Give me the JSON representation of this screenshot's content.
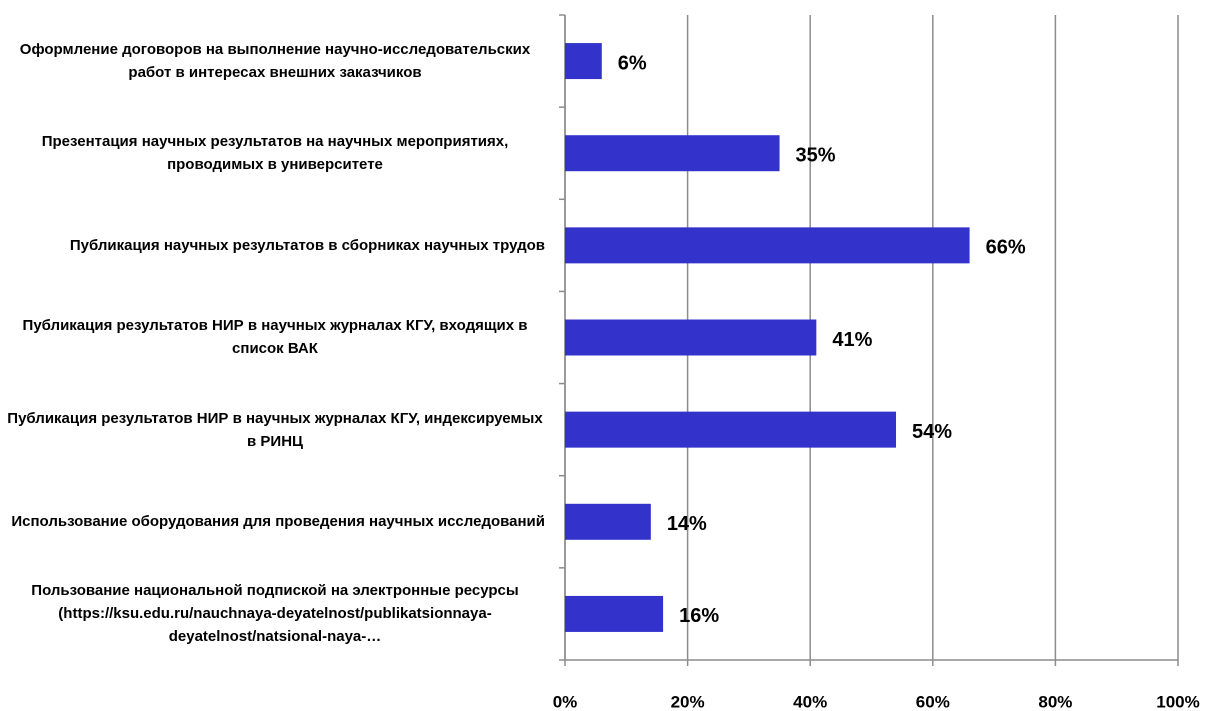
{
  "chart_data": {
    "type": "barh",
    "categories": [
      "Оформление договоров на выполнение научно-исследовательских работ в интересах внешних заказчиков",
      "Презентация научных результатов на научных мероприятиях, проводимых в университете",
      "Публикация научных результатов в сборниках научных трудов",
      "Публикация результатов НИР в научных журналах КГУ, входящих в список ВАК",
      "Публикация результатов НИР в научных журналах КГУ, индексируемых в РИНЦ",
      "Использование оборудования для проведения научных исследований",
      "Пользование национальной подпиской на электронные ресурсы (https://ksu.edu.ru/nauchnaya-deyatelnost/publikatsionnaya-deyatelnost/natsional-naya-…"
    ],
    "values": [
      6,
      35,
      66,
      41,
      54,
      14,
      16
    ],
    "value_labels": [
      "6%",
      "35%",
      "66%",
      "41%",
      "54%",
      "14%",
      "16%"
    ],
    "color": "#3333cc",
    "xlim": [
      0,
      100
    ],
    "xticks": [
      {
        "value": 0,
        "label": "0%"
      },
      {
        "value": 20,
        "label": "20%"
      },
      {
        "value": 40,
        "label": "40%"
      },
      {
        "value": 60,
        "label": "60%"
      },
      {
        "value": 80,
        "label": "80%"
      },
      {
        "value": 100,
        "label": "100%"
      }
    ],
    "grid": true
  }
}
